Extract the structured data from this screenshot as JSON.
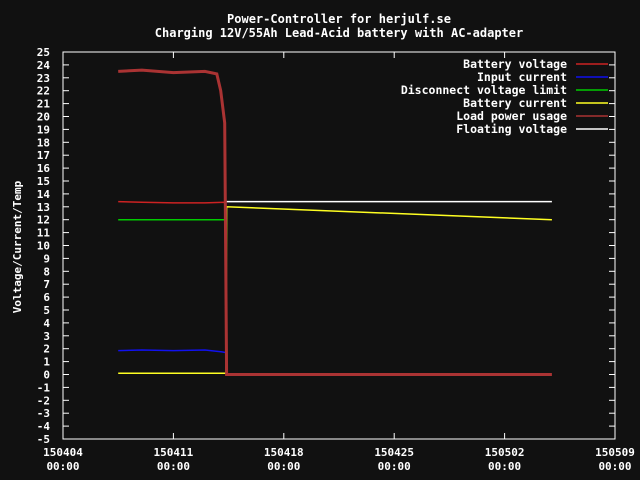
{
  "chart_data": {
    "type": "line",
    "title": "Power-Controller for herjulf.se",
    "subtitle": "Charging 12V/55Ah Lead-Acid battery with AC-adapter",
    "xlabel": "",
    "ylabel": "Voltage/Current/Temp",
    "xlim": [
      "150404 00:00",
      "150509 00:00"
    ],
    "ylim": [
      -5,
      25
    ],
    "x_ticks": [
      {
        "date": "150404",
        "time": "00:00"
      },
      {
        "date": "150411",
        "time": "00:00"
      },
      {
        "date": "150418",
        "time": "00:00"
      },
      {
        "date": "150425",
        "time": "00:00"
      },
      {
        "date": "150502",
        "time": "00:00"
      },
      {
        "date": "150509",
        "time": "00:00"
      }
    ],
    "y_ticks": [
      -5,
      -4,
      -3,
      -2,
      -1,
      0,
      1,
      2,
      3,
      4,
      5,
      6,
      7,
      8,
      9,
      10,
      11,
      12,
      13,
      14,
      15,
      16,
      17,
      18,
      19,
      20,
      21,
      22,
      23,
      24,
      25
    ],
    "grid": false,
    "legend_position": "top-right",
    "series": [
      {
        "name": "Battery voltage",
        "color": "#cc2222",
        "points": [
          [
            "150407 12:00",
            13.4
          ],
          [
            "150409 00:00",
            13.35
          ],
          [
            "150411 00:00",
            13.3
          ],
          [
            "150413 00:00",
            13.3
          ],
          [
            "150414 06:00",
            13.35
          ],
          [
            "150414 08:00",
            13.3
          ]
        ]
      },
      {
        "name": "Input current",
        "color": "#1111ee",
        "points": [
          [
            "150407 12:00",
            1.85
          ],
          [
            "150409 00:00",
            1.9
          ],
          [
            "150411 00:00",
            1.85
          ],
          [
            "150413 00:00",
            1.9
          ],
          [
            "150414 02:00",
            1.75
          ],
          [
            "150414 08:00",
            1.7
          ]
        ]
      },
      {
        "name": "Disconnect voltage limit",
        "color": "#00cc00",
        "points": [
          [
            "150407 12:00",
            12.0
          ],
          [
            "150414 08:00",
            12.0
          ]
        ]
      },
      {
        "name": "Battery current",
        "color": "#ffff22",
        "points": [
          [
            "150407 12:00",
            0.1
          ],
          [
            "150414 08:00",
            0.1
          ],
          [
            "150414 09:00",
            13.0
          ],
          [
            "150505 00:00",
            12.0
          ]
        ]
      },
      {
        "name": "Load power usage",
        "color": "#aa3333",
        "points": [
          [
            "150407 12:00",
            23.5
          ],
          [
            "150409 00:00",
            23.6
          ],
          [
            "150411 00:00",
            23.4
          ],
          [
            "150413 00:00",
            23.5
          ],
          [
            "150413 18:00",
            23.3
          ],
          [
            "150414 00:00",
            22.0
          ],
          [
            "150414 06:00",
            19.5
          ],
          [
            "150414 09:00",
            0.0
          ],
          [
            "150505 00:00",
            0.0
          ]
        ]
      },
      {
        "name": "Floating voltage",
        "color": "#ffffff",
        "points": [
          [
            "150414 09:00",
            13.4
          ],
          [
            "150505 00:00",
            13.4
          ]
        ]
      }
    ]
  }
}
